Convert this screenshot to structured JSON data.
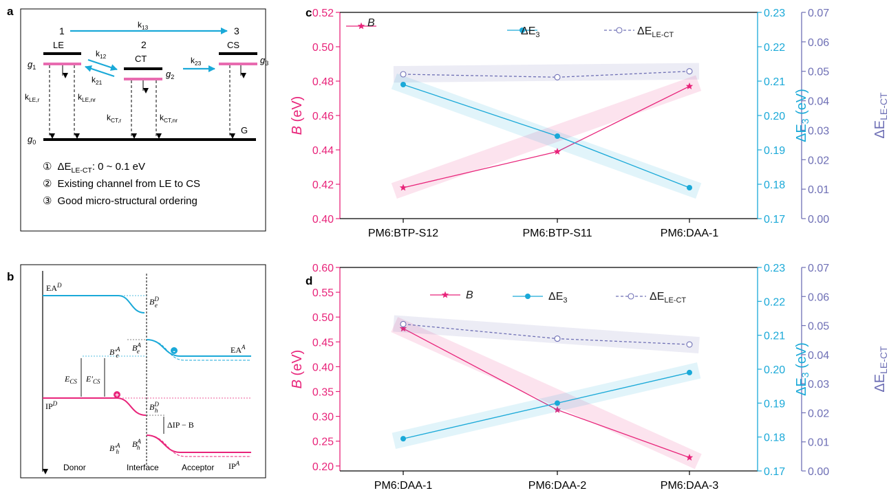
{
  "panels": {
    "a": "a",
    "b": "b",
    "c": "c",
    "d": "d"
  },
  "colors": {
    "pink": "#e8247a",
    "cyan": "#1aa9d8",
    "purple": "#6e6fb5",
    "black": "#000000"
  },
  "panel_a": {
    "state1_num": "1",
    "state2_num": "2",
    "state3_num": "3",
    "state1": "LE",
    "state2": "CT",
    "state3": "CS",
    "ground": "G",
    "g0": "g",
    "g0_sub": "0",
    "g1": "g",
    "g1_sub": "1",
    "g2": "g",
    "g2_sub": "2",
    "g3": "g",
    "g3_sub": "3",
    "k13": "k",
    "k13_sub": "13",
    "k12": "k",
    "k12_sub": "12",
    "k21": "k",
    "k21_sub": "21",
    "k23": "k",
    "k23_sub": "23",
    "kler": "k",
    "kler_sub": "LE,r",
    "klenr": "k",
    "klenr_sub": "LE,nr",
    "kctr": "k",
    "kctr_sub": "CT,r",
    "kctnr": "k",
    "kctnr_sub": "CT,nr",
    "notes": [
      {
        "marker": "①",
        "pre": "ΔE",
        "sub": "LE-CT",
        "post": ": 0 ~ 0.1 eV"
      },
      {
        "marker": "②",
        "text": "Existing channel from LE to CS"
      },
      {
        "marker": "③",
        "text": "Good micro-structural ordering"
      }
    ]
  },
  "panel_b": {
    "ea_d": "EA",
    "ea_d_sup": "D",
    "ea_a": "EA",
    "ea_a_sup": "A",
    "ip_d": "IP",
    "ip_d_sup": "D",
    "ip_a": "IP",
    "ip_a_sup": "A",
    "be_d": "B",
    "be_d_sub": "e",
    "be_d_sup": "D",
    "be_a": "B",
    "be_a_sub": "e",
    "be_a_sup": "A",
    "bpe_a": "B′",
    "bpe_a_sub": "e",
    "bpe_a_sup": "A",
    "bh_d": "B",
    "bh_d_sub": "h",
    "bh_d_sup": "D",
    "bh_a": "B",
    "bh_a_sub": "h",
    "bh_a_sup": "A",
    "bph_a": "B′",
    "bph_a_sub": "h",
    "bph_a_sup": "A",
    "ecs": "E",
    "ecs_sub": "CS",
    "epcs": "E′",
    "epcs_sub": "CS",
    "dip": "ΔIP − B",
    "minus": "-",
    "plus": "+",
    "donor": "Donor",
    "interface": "Interface",
    "acceptor": "Acceptor"
  },
  "chart_data": [
    {
      "type": "line",
      "panel": "c",
      "categories": [
        "PM6:BTP-S12",
        "PM6:BTP-S11",
        "PM6:DAA-1"
      ],
      "series": [
        {
          "name": "B",
          "axis": "left",
          "values": [
            0.418,
            0.439,
            0.477
          ],
          "color": "#e8247a",
          "marker": "star"
        },
        {
          "name": "ΔE3",
          "axis": "right1",
          "values": [
            0.209,
            0.194,
            0.179
          ],
          "color": "#1aa9d8",
          "marker": "filled-circle"
        },
        {
          "name": "ΔELE-CT",
          "axis": "right2",
          "values": [
            0.049,
            0.048,
            0.05
          ],
          "color": "#6e6fb5",
          "marker": "open-circle",
          "dashed": true
        }
      ],
      "legend": {
        "b": "B",
        "e3": "ΔE",
        "e3_sub": "3",
        "elect": "ΔE",
        "elect_sub": "LE-CT"
      },
      "axes": {
        "left": {
          "label": "B",
          "unit": " (eV)",
          "ylim": [
            0.4,
            0.52
          ],
          "ticks": [
            "0.40",
            "0.42",
            "0.44",
            "0.46",
            "0.48",
            "0.50",
            "0.52"
          ]
        },
        "right1": {
          "label": "ΔE",
          "label_sub": "3",
          "unit": " (eV)",
          "ylim": [
            0.17,
            0.23
          ],
          "ticks": [
            "0.17",
            "0.18",
            "0.19",
            "0.20",
            "0.21",
            "0.22",
            "0.23"
          ]
        },
        "right2": {
          "label": "ΔE",
          "label_sub": "LE-CT",
          "ylim": [
            0.0,
            0.07
          ],
          "ticks": [
            "0.00",
            "0.01",
            "0.02",
            "0.03",
            "0.04",
            "0.05",
            "0.06",
            "0.07"
          ]
        }
      }
    },
    {
      "type": "line",
      "panel": "d",
      "categories": [
        "PM6:DAA-1",
        "PM6:DAA-2",
        "PM6:DAA-3"
      ],
      "series": [
        {
          "name": "B",
          "axis": "left",
          "values": [
            0.477,
            0.313,
            0.217
          ],
          "color": "#e8247a",
          "marker": "star"
        },
        {
          "name": "ΔE3",
          "axis": "right1",
          "values": [
            0.1795,
            0.19,
            0.199
          ],
          "color": "#1aa9d8",
          "marker": "filled-circle"
        },
        {
          "name": "ΔELE-CT",
          "axis": "right2",
          "values": [
            0.0505,
            0.0455,
            0.0435
          ],
          "color": "#6e6fb5",
          "marker": "open-circle",
          "dashed": true
        }
      ],
      "legend": {
        "b": "B",
        "e3": "ΔE",
        "e3_sub": "3",
        "elect": "ΔE",
        "elect_sub": "LE-CT"
      },
      "axes": {
        "left": {
          "label": "B",
          "unit": " (eV)",
          "ylim": [
            0.19,
            0.6
          ],
          "ticks": [
            "0.20",
            "0.25",
            "0.30",
            "0.35",
            "0.40",
            "0.45",
            "0.50",
            "0.55",
            "0.60"
          ]
        },
        "right1": {
          "label": "ΔE",
          "label_sub": "3",
          "unit": " (eV)",
          "ylim": [
            0.17,
            0.23
          ],
          "ticks": [
            "0.17",
            "0.18",
            "0.19",
            "0.20",
            "0.21",
            "0.22",
            "0.23"
          ]
        },
        "right2": {
          "label": "ΔE",
          "label_sub": "LE-CT",
          "ylim": [
            0.0,
            0.07
          ],
          "ticks": [
            "0.00",
            "0.01",
            "0.02",
            "0.03",
            "0.04",
            "0.05",
            "0.06",
            "0.07"
          ]
        }
      }
    }
  ]
}
